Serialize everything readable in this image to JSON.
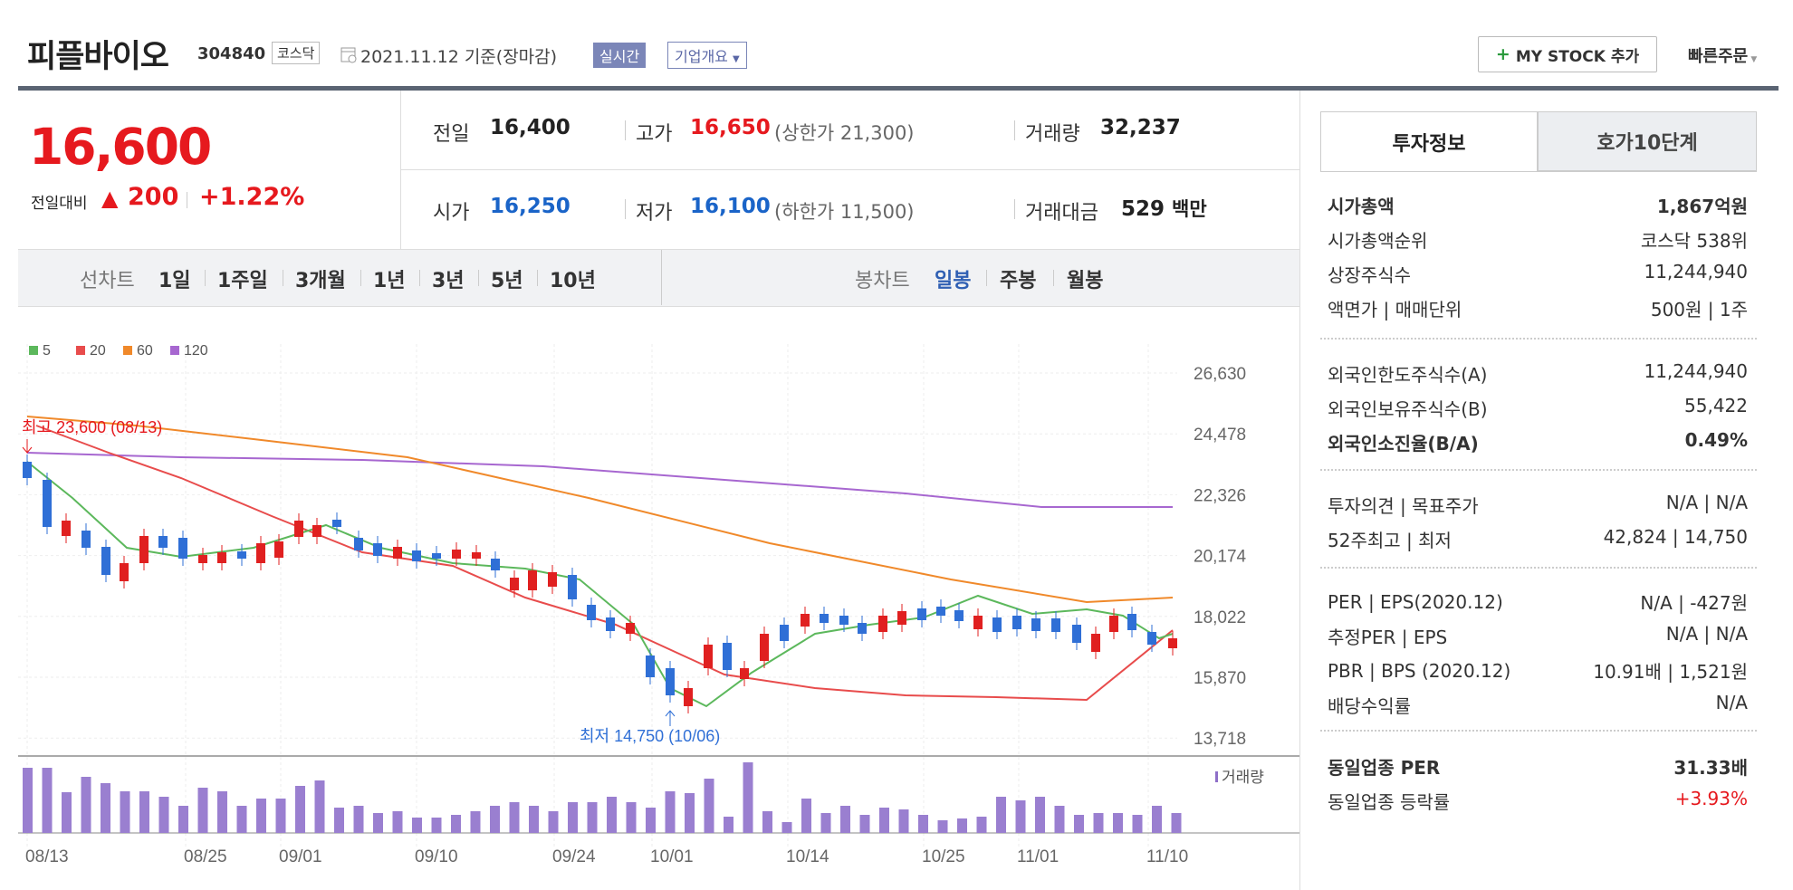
{
  "header": {
    "name": "피플바이오",
    "code": "304840",
    "market": "코스닥",
    "date": "2021.11.12  기준(장마감)",
    "realtime": "실시간",
    "company_info": "기업개요",
    "mystock": "MY STOCK 추가",
    "quick_order": "빠른주문"
  },
  "price": {
    "current": "16,600",
    "change_label": "전일대비",
    "change_arrow": "▲",
    "change_value": "200",
    "change_pct": "+1.22%"
  },
  "summary": {
    "prev_label": "전일",
    "prev": "16,400",
    "high_label": "고가",
    "high": "16,650",
    "upper": "(상한가 21,300)",
    "volume_label": "거래량",
    "volume": "32,237",
    "open_label": "시가",
    "open": "16,250",
    "low_label": "저가",
    "low": "16,100",
    "lower": "(하한가 11,500)",
    "amount_label": "거래대금",
    "amount": "529",
    "amount_unit": "백만"
  },
  "period": {
    "line_label": "선차트",
    "line_items": [
      "1일",
      "1주일",
      "3개월",
      "1년",
      "3년",
      "5년",
      "10년"
    ],
    "candle_label": "봉차트",
    "candle_items": [
      "일봉",
      "주봉",
      "월봉"
    ]
  },
  "chart": {
    "legend": [
      "5",
      "20",
      "60",
      "120"
    ],
    "legend_colors": [
      "#5cb85c",
      "#e84c4c",
      "#f0892a",
      "#a767d0"
    ],
    "y_ticks": [
      "26,630",
      "24,478",
      "22,326",
      "20,174",
      "18,022",
      "15,870",
      "13,718"
    ],
    "x_ticks": [
      "08/13",
      "08/25",
      "09/01",
      "09/10",
      "09/24",
      "10/01",
      "10/14",
      "10/25",
      "11/01",
      "11/10"
    ],
    "max_label": "최고 23,600 (08/13)",
    "min_label": "최저 14,750 (10/06)",
    "volume_label": "거래량",
    "up_color": "#e02020",
    "down_color": "#2f6fd6"
  },
  "right": {
    "tab1": "투자정보",
    "tab2": "호가10단계",
    "rows1": [
      {
        "k": "시가총액",
        "v": "1,867",
        "u": "억원",
        "bold": true
      },
      {
        "k": "시가총액순위",
        "v": "코스닥 538위"
      },
      {
        "k": "상장주식수",
        "v": "11,244,940"
      },
      {
        "k": "액면가 | 매매단위",
        "v": "500원 | 1주"
      }
    ],
    "rows2": [
      {
        "k": "외국인한도주식수(A)",
        "v": "11,244,940"
      },
      {
        "k": "외국인보유주식수(B)",
        "v": "55,422"
      },
      {
        "k": "외국인소진율(B/A)",
        "v": "0.49%",
        "bold": true
      }
    ],
    "rows3": [
      {
        "k": "투자의견 | 목표주가",
        "v": "N/A | N/A"
      },
      {
        "k": "52주최고 | 최저",
        "v": "42,824 | 14,750"
      }
    ],
    "rows4": [
      {
        "k": "PER | EPS(2020.12)",
        "v": "N/A | -427원"
      },
      {
        "k": "추정PER | EPS",
        "v": "N/A | N/A"
      },
      {
        "k": "PBR | BPS (2020.12)",
        "v": "10.91배 | 1,521원"
      },
      {
        "k": "배당수익률",
        "v": "N/A"
      }
    ],
    "rows5": [
      {
        "k": "동일업종 PER",
        "v": "31.33배",
        "bold": true
      },
      {
        "k": "동일업종 등락률",
        "v": "+3.93%",
        "red": true
      }
    ]
  }
}
